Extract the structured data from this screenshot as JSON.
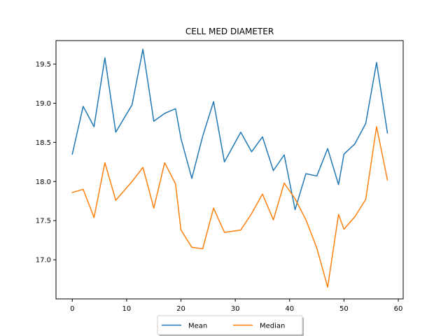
{
  "chart_data": {
    "type": "line",
    "title": "CELL MED DIAMETER",
    "xlabel": "",
    "ylabel": "",
    "xlim": [
      -3.0,
      60.9
    ],
    "ylim": [
      16.5,
      19.8
    ],
    "xticks": [
      0,
      10,
      20,
      30,
      40,
      50,
      60
    ],
    "yticks": [
      17.0,
      17.5,
      18.0,
      18.5,
      19.0,
      19.5
    ],
    "grid": false,
    "legend_position": "bottom-center",
    "x": [
      0,
      2,
      4,
      6,
      8,
      11,
      13,
      15,
      17,
      19,
      20,
      22,
      24,
      26,
      28,
      31,
      33,
      35,
      37,
      39,
      41,
      43,
      45,
      47,
      49,
      50,
      52,
      54,
      56,
      58
    ],
    "series": [
      {
        "name": "Mean",
        "color": "#1f77b4",
        "values": [
          18.35,
          18.96,
          18.7,
          19.58,
          18.63,
          18.98,
          19.69,
          18.77,
          18.87,
          18.93,
          18.55,
          18.04,
          18.58,
          19.02,
          18.25,
          18.63,
          18.38,
          18.57,
          18.14,
          18.34,
          17.64,
          18.1,
          18.07,
          18.42,
          17.96,
          18.35,
          18.48,
          18.74,
          19.52,
          18.62
        ]
      },
      {
        "name": "Median",
        "color": "#ff7f0e",
        "values": [
          17.86,
          17.9,
          17.54,
          18.24,
          17.76,
          18.0,
          18.18,
          17.66,
          18.24,
          17.97,
          17.38,
          17.16,
          17.14,
          17.66,
          17.35,
          17.38,
          17.59,
          17.84,
          17.51,
          17.98,
          17.78,
          17.51,
          17.15,
          16.65,
          17.58,
          17.39,
          17.55,
          17.77,
          18.7,
          18.02
        ]
      }
    ]
  }
}
